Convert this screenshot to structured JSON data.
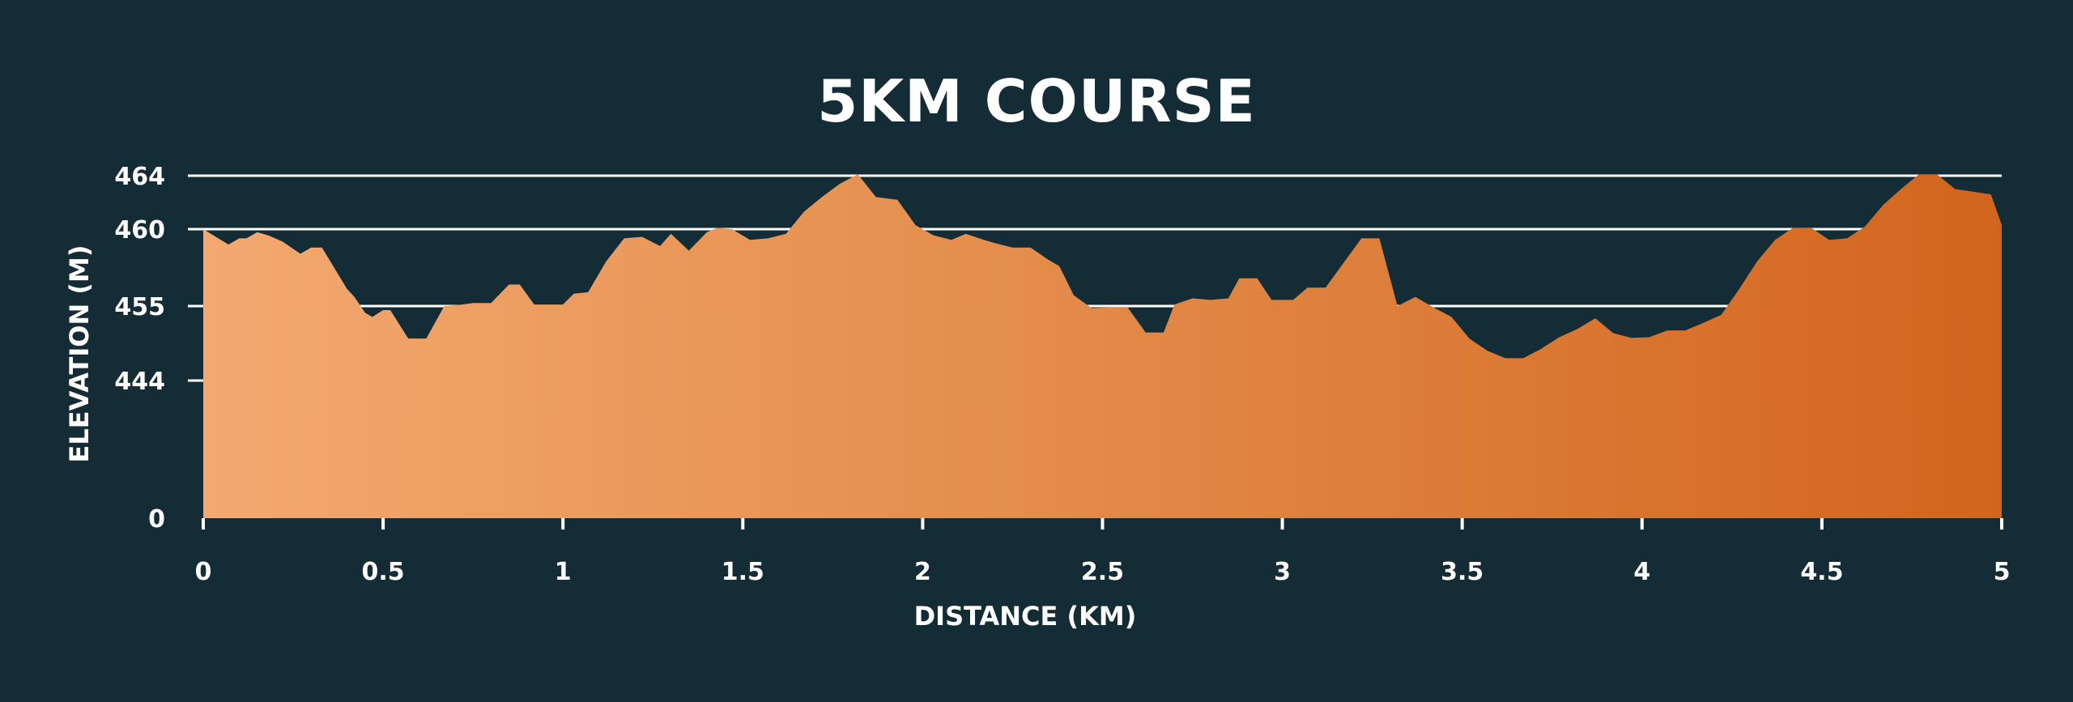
{
  "chart_data": {
    "type": "area",
    "title": "5KM COURSE",
    "xlabel": "DISTANCE (KM)",
    "ylabel": "ELEVATION (M)",
    "x_ticks": [
      "0",
      "0.5",
      "1",
      "1.5",
      "2",
      "2.5",
      "3",
      "3.5",
      "4",
      "4.5",
      "5"
    ],
    "y_ticks": [
      "0",
      "444",
      "455",
      "460",
      "464"
    ],
    "xlim": [
      0,
      5
    ],
    "grid": true,
    "gradient_colors": [
      "#f3a970",
      "#e48d4c",
      "#d2651e"
    ],
    "series": [
      {
        "x": [
          0,
          0.07,
          0.1,
          0.12,
          0.15,
          0.18,
          0.2,
          0.22,
          0.27,
          0.3,
          0.33,
          0.4,
          0.42,
          0.45,
          0.47,
          0.5,
          0.52,
          0.57,
          0.62,
          0.67,
          0.72,
          0.75,
          0.8,
          0.85,
          0.88,
          0.92,
          0.95,
          1.0,
          1.03,
          1.07,
          1.12,
          1.17,
          1.22,
          1.27,
          1.3,
          1.35,
          1.4,
          1.43,
          1.47,
          1.52,
          1.57,
          1.62,
          1.67,
          1.72,
          1.77,
          1.82,
          1.87,
          1.93,
          1.98,
          2.03,
          2.08,
          2.12,
          2.17,
          2.2,
          2.25,
          2.3,
          2.35,
          2.38,
          2.42,
          2.47,
          2.52,
          2.57,
          2.62,
          2.67,
          2.7,
          2.75,
          2.8,
          2.85,
          2.88,
          2.93,
          2.97,
          3.03,
          3.07,
          3.12,
          3.17,
          3.22,
          3.27,
          3.32,
          3.37,
          3.42,
          3.47,
          3.52,
          3.57,
          3.62,
          3.67,
          3.72,
          3.77,
          3.82,
          3.87,
          3.92,
          3.97,
          4.02,
          4.07,
          4.12,
          4.17,
          4.22,
          4.27,
          4.32,
          4.37,
          4.42,
          4.47,
          4.52,
          4.57,
          4.62,
          4.67,
          4.72,
          4.77,
          4.82,
          4.87,
          4.92,
          4.97,
          5.0
        ],
        "values": [
          460,
          459,
          459.4,
          459.4,
          459.8,
          459.6,
          459.4,
          459.2,
          458.4,
          458.8,
          458.8,
          456.1,
          455.6,
          454,
          453.4,
          454.4,
          454.4,
          450.2,
          450.2,
          455.0,
          455.1,
          455.2,
          455.2,
          456.4,
          456.4,
          455.1,
          455.1,
          455.1,
          455.8,
          455.9,
          457.9,
          459.4,
          459.5,
          458.9,
          459.7,
          458.6,
          459.8,
          460.1,
          460.0,
          459.3,
          459.4,
          459.7,
          461.3,
          462.4,
          463.4,
          464.1,
          462.4,
          462.2,
          460.3,
          459.6,
          459.3,
          459.7,
          459.3,
          459.1,
          458.8,
          458.8,
          458.0,
          457.6,
          455.7,
          454.7,
          454.8,
          454.8,
          451.1,
          451.1,
          455.1,
          455.5,
          455.4,
          455.5,
          456.8,
          456.8,
          455.4,
          455.4,
          456.2,
          456.2,
          457.8,
          459.4,
          459.4,
          455.0,
          455.6,
          454.8,
          453.4,
          450.2,
          448.4,
          447.3,
          447.3,
          448.7,
          450.4,
          451.6,
          453.2,
          451.0,
          450.3,
          450.4,
          451.4,
          451.4,
          452.5,
          453.7,
          456.1,
          457.9,
          459.3,
          460.1,
          460.1,
          459.3,
          459.4,
          460.2,
          461.8,
          463.0,
          464.1,
          464.1,
          463.0,
          462.8,
          462.6,
          460.3
        ]
      }
    ]
  }
}
